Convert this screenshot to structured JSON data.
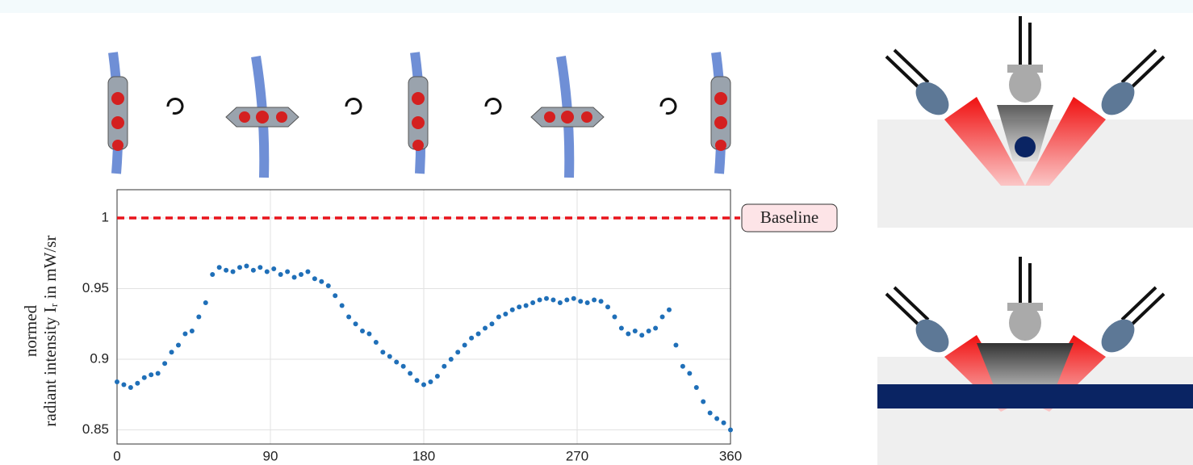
{
  "chart_data": {
    "type": "scatter",
    "ylabel": [
      "normed",
      "radiant intensity Iᵣ in mW/sr"
    ],
    "xlim": [
      0,
      360
    ],
    "xticks": [
      0,
      90,
      180,
      270,
      360
    ],
    "ylim": [
      0.84,
      1.02
    ],
    "yticks": [
      0.85,
      0.9,
      0.95,
      1
    ],
    "grid": true,
    "baseline": {
      "value": 1,
      "label": "Baseline",
      "color": "#e8141b"
    },
    "series": [
      {
        "color": "#1f6fb8",
        "x": [
          0,
          4,
          8,
          12,
          16,
          20,
          24,
          28,
          32,
          36,
          40,
          44,
          48,
          52,
          56,
          60,
          64,
          68,
          72,
          76,
          80,
          84,
          88,
          92,
          96,
          100,
          104,
          108,
          112,
          116,
          120,
          124,
          128,
          132,
          136,
          140,
          144,
          148,
          152,
          156,
          160,
          164,
          168,
          172,
          176,
          180,
          184,
          188,
          192,
          196,
          200,
          204,
          208,
          212,
          216,
          220,
          224,
          228,
          232,
          236,
          240,
          244,
          248,
          252,
          256,
          260,
          264,
          268,
          272,
          276,
          280,
          284,
          288,
          292,
          296,
          300,
          304,
          308,
          312,
          316,
          320,
          324,
          328,
          332,
          336,
          340,
          344,
          348,
          352,
          356,
          360
        ],
        "values": [
          0.884,
          0.882,
          0.88,
          0.883,
          0.887,
          0.889,
          0.89,
          0.897,
          0.905,
          0.91,
          0.918,
          0.92,
          0.93,
          0.94,
          0.96,
          0.965,
          0.963,
          0.962,
          0.965,
          0.966,
          0.963,
          0.965,
          0.962,
          0.964,
          0.96,
          0.962,
          0.958,
          0.96,
          0.962,
          0.957,
          0.955,
          0.952,
          0.945,
          0.938,
          0.93,
          0.925,
          0.92,
          0.918,
          0.912,
          0.905,
          0.902,
          0.898,
          0.895,
          0.89,
          0.885,
          0.882,
          0.884,
          0.888,
          0.895,
          0.9,
          0.905,
          0.91,
          0.915,
          0.918,
          0.922,
          0.925,
          0.93,
          0.932,
          0.935,
          0.937,
          0.938,
          0.94,
          0.942,
          0.943,
          0.942,
          0.94,
          0.942,
          0.943,
          0.941,
          0.94,
          0.942,
          0.941,
          0.937,
          0.93,
          0.922,
          0.918,
          0.92,
          0.917,
          0.92,
          0.922,
          0.93,
          0.935,
          0.91,
          0.895,
          0.89,
          0.88,
          0.87,
          0.862,
          0.858,
          0.855,
          0.85
        ]
      }
    ]
  }
}
